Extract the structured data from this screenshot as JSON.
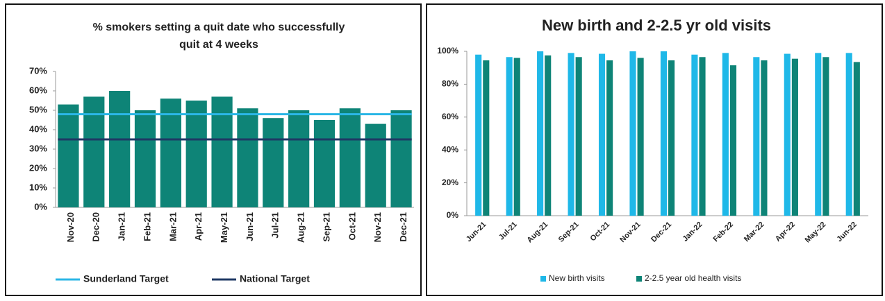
{
  "chart_data": [
    {
      "type": "bar",
      "title": [
        "% smokers setting a quit date who successfully",
        "quit at 4 weeks"
      ],
      "categories": [
        "Nov-20",
        "Dec-20",
        "Jan-21",
        "Feb-21",
        "Mar-21",
        "Apr-21",
        "May-21",
        "Jun-21",
        "Jul-21",
        "Aug-21",
        "Sep-21",
        "Oct-21",
        "Nov-21",
        "Dec-21"
      ],
      "series": [
        {
          "type": "bar",
          "color": "#0e8477",
          "values": [
            53,
            57,
            60,
            50,
            56,
            55,
            57,
            51,
            46,
            50,
            45,
            51,
            43,
            50
          ]
        },
        {
          "type": "line",
          "name": "Sunderland Target",
          "color": "#2bb6e6",
          "values": [
            48,
            48,
            48,
            48,
            48,
            48,
            48,
            48,
            48,
            48,
            48,
            48,
            48,
            48
          ]
        },
        {
          "type": "line",
          "name": "National Target",
          "color": "#1f3864",
          "values": [
            35,
            35,
            35,
            35,
            35,
            35,
            35,
            35,
            35,
            35,
            35,
            35,
            35,
            35
          ]
        }
      ],
      "ylim": [
        0,
        70
      ],
      "yticks": [
        {
          "value": 0,
          "label": "0%"
        },
        {
          "value": 10,
          "label": "10%"
        },
        {
          "value": 20,
          "label": "20%"
        },
        {
          "value": 30,
          "label": "30%"
        },
        {
          "value": 40,
          "label": "40%"
        },
        {
          "value": 50,
          "label": "50%"
        },
        {
          "value": 60,
          "label": "60%"
        },
        {
          "value": 70,
          "label": "70%"
        }
      ],
      "legend": "bottom"
    },
    {
      "type": "bar",
      "title": [
        "New birth and 2-2.5 yr old visits"
      ],
      "categories": [
        "Jun-21",
        "Jul-21",
        "Aug-21",
        "Sep-21",
        "Oct-21",
        "Nov-21",
        "Dec-21",
        "Jan-22",
        "Feb-22",
        "Mar-22",
        "Apr-22",
        "May-22",
        "Jun-22"
      ],
      "series": [
        {
          "type": "bar",
          "name": "New birth visits",
          "color": "#1fb8e8",
          "values": [
            98,
            96.5,
            100,
            99,
            98.5,
            100,
            100,
            98,
            99,
            96.5,
            98.5,
            99,
            99
          ]
        },
        {
          "type": "bar",
          "name": "2-2.5 year old health visits",
          "color": "#0e8477",
          "values": [
            94.5,
            96,
            97.5,
            96.5,
            94.5,
            96,
            94.5,
            96.5,
            91.5,
            94.5,
            95.5,
            96.5,
            93.5
          ]
        }
      ],
      "ylim": [
        0,
        100
      ],
      "yticks": [
        {
          "value": 0,
          "label": "0%"
        },
        {
          "value": 20,
          "label": "20%"
        },
        {
          "value": 40,
          "label": "40%"
        },
        {
          "value": 60,
          "label": "60%"
        },
        {
          "value": 80,
          "label": "80%"
        },
        {
          "value": 100,
          "label": "100%"
        }
      ],
      "legend": "bottom"
    }
  ]
}
